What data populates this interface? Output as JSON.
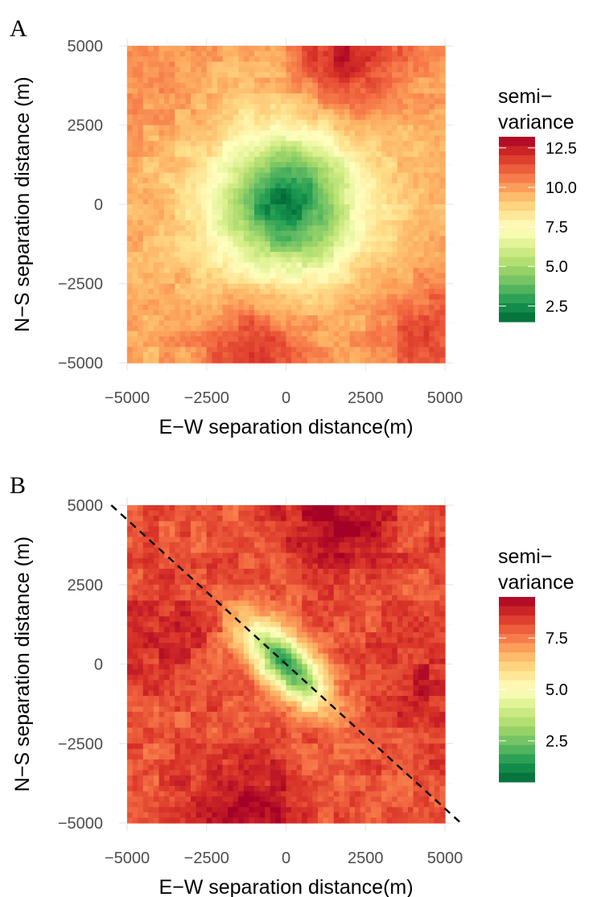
{
  "chart_data": [
    {
      "type": "heatmap",
      "panel_label": "A",
      "xlabel": "E−W separation distance(m)",
      "ylabel": "N−S separation distance (m)",
      "xlim": [
        -5000,
        5000
      ],
      "ylim": [
        -5000,
        5000
      ],
      "x_ticks": [
        -5000,
        -2500,
        0,
        2500,
        5000
      ],
      "y_ticks": [
        -5000,
        -2500,
        0,
        2500,
        5000
      ],
      "x_tick_labels": [
        "−5000",
        "−2500",
        "0",
        "2500",
        "5000"
      ],
      "y_tick_labels": [
        "−5000",
        "−2500",
        "0",
        "2500",
        "5000"
      ],
      "grid": true,
      "legend": {
        "title_lines": [
          "semi−",
          "variance"
        ],
        "placement": "right",
        "range": [
          1.5,
          13.2
        ],
        "breaks": [
          2.5,
          5.0,
          7.5,
          10.0,
          12.5
        ],
        "break_labels": [
          "2.5",
          "5.0",
          "7.5",
          "10.0",
          "12.5"
        ]
      },
      "field": {
        "description_free": true,
        "center_value": 2.0,
        "sill": 9.6,
        "range_m": 3500,
        "anisotropy_angle_deg": 0,
        "anisotropy_ratio": 1.0,
        "hotspots": [
          {
            "x": 2000,
            "y": 4800,
            "value": 12.5
          },
          {
            "x": -1000,
            "y": -4800,
            "value": 12.0
          },
          {
            "x": 4600,
            "y": -4200,
            "value": 11.5
          },
          {
            "x": -4500,
            "y": 4200,
            "value": 10.5
          }
        ]
      },
      "colors": [
        "#006837",
        "#1a9850",
        "#66bd63",
        "#a6d96a",
        "#d9ef8b",
        "#ffffbf",
        "#fee08b",
        "#fdae61",
        "#f46d43",
        "#d73027",
        "#a50026"
      ]
    },
    {
      "type": "heatmap",
      "panel_label": "B",
      "xlabel": "E−W separation distance(m)",
      "ylabel": "N−S separation distance (m)",
      "xlim": [
        -5000,
        5000
      ],
      "ylim": [
        -5000,
        5000
      ],
      "x_ticks": [
        -5000,
        -2500,
        0,
        2500,
        5000
      ],
      "y_ticks": [
        -5000,
        -2500,
        0,
        2500,
        5000
      ],
      "x_tick_labels": [
        "−5000",
        "−2500",
        "0",
        "2500",
        "5000"
      ],
      "y_tick_labels": [
        "−5000",
        "−2500",
        "0",
        "2500",
        "5000"
      ],
      "grid": true,
      "reference_line": {
        "style": "dashed",
        "x": [
          -5500,
          5500
        ],
        "y": [
          5000,
          -5000
        ]
      },
      "legend": {
        "title_lines": [
          "semi−",
          "variance"
        ],
        "placement": "right",
        "range": [
          0.5,
          9.5
        ],
        "breaks": [
          2.5,
          5.0,
          7.5
        ],
        "break_labels": [
          "2.5",
          "5.0",
          "7.5"
        ]
      },
      "field": {
        "description_free": true,
        "center_value": 1.2,
        "sill": 8.0,
        "range_m": 2600,
        "anisotropy_angle_deg": -45,
        "anisotropy_ratio": 0.45,
        "hotspots": [
          {
            "x": 1500,
            "y": 4600,
            "value": 9.4
          },
          {
            "x": -1400,
            "y": -4700,
            "value": 9.4
          },
          {
            "x": -4200,
            "y": 1000,
            "value": 8.8
          },
          {
            "x": 4300,
            "y": -800,
            "value": 8.8
          }
        ]
      },
      "colors": [
        "#006837",
        "#1a9850",
        "#66bd63",
        "#a6d96a",
        "#d9ef8b",
        "#ffffbf",
        "#fee08b",
        "#fdae61",
        "#f46d43",
        "#d73027",
        "#a50026"
      ]
    }
  ]
}
